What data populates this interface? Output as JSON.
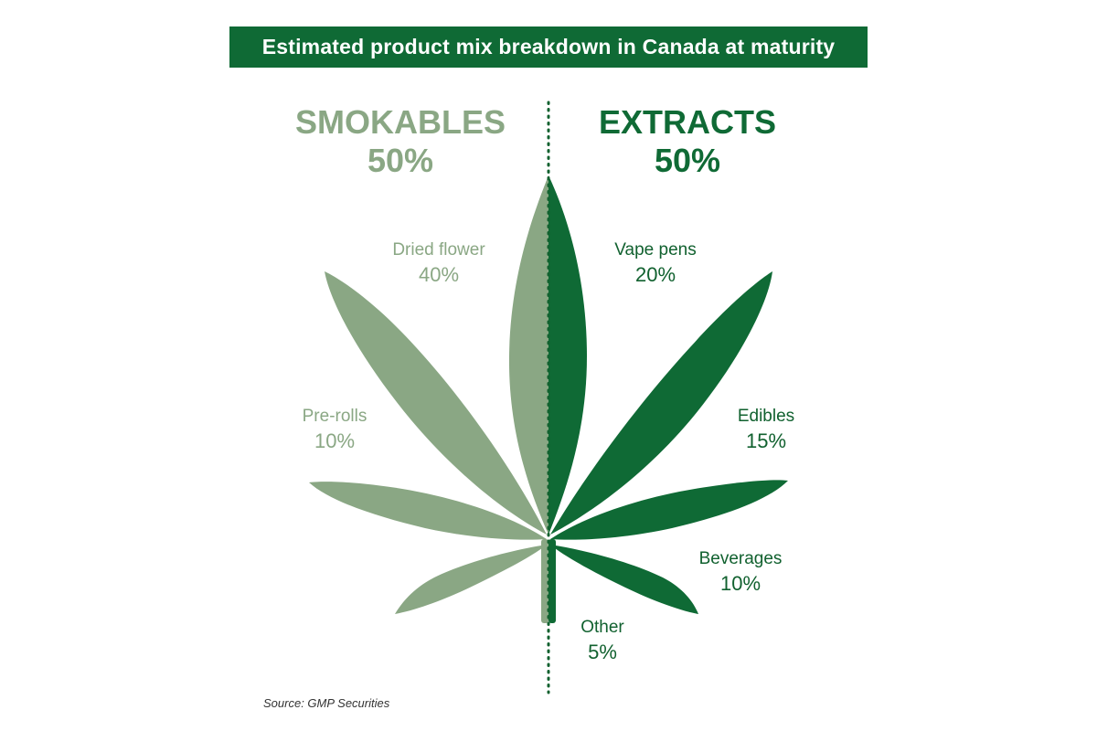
{
  "title": "Estimated product mix breakdown in Canada at maturity",
  "source": "Source: GMP Securities",
  "colors": {
    "title_bg": "#0f6a35",
    "smokables": "#8aa784",
    "extracts": "#0f6a35",
    "text_light": "#8aa784",
    "text_dark": "#11612f"
  },
  "chart_data": {
    "type": "pie",
    "groups": [
      {
        "name": "SMOKABLES",
        "percent_label": "50%",
        "value": 50,
        "items": [
          {
            "label": "Dried flower",
            "percent_label": "40%",
            "value": 40
          },
          {
            "label": "Pre-rolls",
            "percent_label": "10%",
            "value": 10
          }
        ]
      },
      {
        "name": "EXTRACTS",
        "percent_label": "50%",
        "value": 50,
        "items": [
          {
            "label": "Vape pens",
            "percent_label": "20%",
            "value": 20
          },
          {
            "label": "Edibles",
            "percent_label": "15%",
            "value": 15
          },
          {
            "label": "Beverages",
            "percent_label": "10%",
            "value": 10
          },
          {
            "label": "Other",
            "percent_label": "5%",
            "value": 5
          }
        ]
      }
    ]
  }
}
